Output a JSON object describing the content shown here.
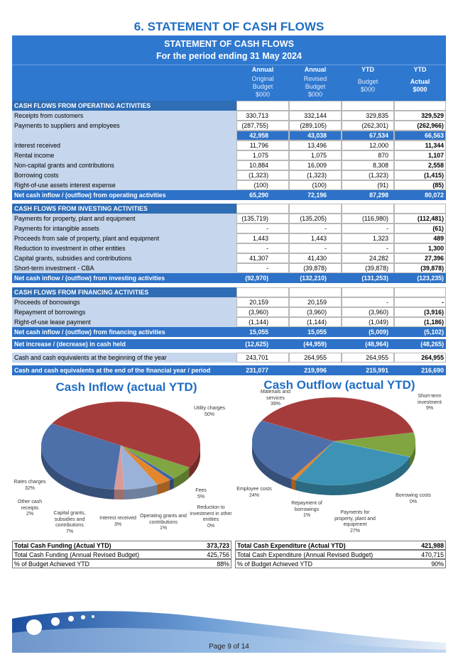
{
  "page_title": "6. STATEMENT OF CASH FLOWS",
  "table": {
    "title": "STATEMENT OF CASH FLOWS",
    "subtitle": "For the period ending 31 May 2024",
    "header_top": [
      "Annual",
      "Annual",
      "YTD",
      "YTD"
    ],
    "header_sub": [
      "Original Budget $000",
      "Revised Budget $000",
      "Budget $000",
      "Actual $000"
    ],
    "sections": [
      {
        "heading": "CASH FLOWS FROM OPERATING ACTIVITIES",
        "rows": [
          {
            "label": "Receipts from customers",
            "values": [
              "330,713",
              "332,144",
              "329,835",
              "329,529"
            ]
          },
          {
            "label": "Payments to suppliers and employees",
            "values": [
              "(287,755)",
              "(289,105)",
              "(262,301)",
              "(262,966)"
            ]
          },
          {
            "values": [
              "42,958",
              "43,038",
              "67,534",
              "66,563"
            ]
          },
          {
            "label": "Interest received",
            "values": [
              "11,796",
              "13,496",
              "12,000",
              "11,344"
            ]
          },
          {
            "label": "Rental income",
            "values": [
              "1,075",
              "1,075",
              "870",
              "1,107"
            ]
          },
          {
            "label": "Non-capital grants and contributions",
            "values": [
              "10,884",
              "16,009",
              "8,308",
              "2,558"
            ]
          },
          {
            "label": "Borrowing costs",
            "values": [
              "(1,323)",
              "(1,323)",
              "(1,323)",
              "(1,415)"
            ]
          },
          {
            "label": "Right-of-use assets interest expense",
            "values": [
              "(100)",
              "(100)",
              "(91)",
              "(85)"
            ]
          }
        ],
        "net": {
          "label": "Net cash inflow / (outflow) from operating activities",
          "values": [
            "65,290",
            "72,196",
            "87,298",
            "80,072"
          ]
        }
      },
      {
        "heading": "CASH FLOWS FROM INVESTING ACTIVITIES",
        "rows": [
          {
            "label": "Payments for property, plant and equipment",
            "values": [
              "(135,719)",
              "(135,205)",
              "(116,980)",
              "(112,481)"
            ]
          },
          {
            "label": "Payments for intangible assets",
            "values": [
              "-",
              "-",
              "-",
              "(61)"
            ]
          },
          {
            "label": "Proceeds from sale of property, plant and equipment",
            "values": [
              "1,443",
              "1,443",
              "1,323",
              "489"
            ]
          },
          {
            "label": "Reduction to investment in other entities",
            "values": [
              "-",
              "-",
              "-",
              "1,300"
            ]
          },
          {
            "label": "Capital grants, subsidies and contributions",
            "values": [
              "41,307",
              "41,430",
              "24,282",
              "27,396"
            ]
          },
          {
            "label": "Short-term investment - CBA",
            "values": [
              "-",
              "(39,878)",
              "(39,878)",
              "(39,878)"
            ]
          }
        ],
        "net": {
          "label": "Net cash inflow / (outflow) from investing activities",
          "values": [
            "(92,970)",
            "(132,210)",
            "(131,253)",
            "(123,235)"
          ]
        }
      },
      {
        "heading": "CASH FLOWS FROM FINANCING ACTIVITIES",
        "rows": [
          {
            "label": "Proceeds of borrowings",
            "values": [
              "20,159",
              "20,159",
              "-",
              "-"
            ]
          },
          {
            "label": "Repayment of borrowings",
            "values": [
              "(3,960)",
              "(3,960)",
              "(3,960)",
              "(3,916)"
            ]
          },
          {
            "label": "Right-of-use lease payment",
            "values": [
              "(1,144)",
              "(1,144)",
              "(1,049)",
              "(1,186)"
            ]
          }
        ],
        "net": {
          "label": "Net cash inflow / (outflow) from financing activities",
          "values": [
            "15,055",
            "15,055",
            "(5,009)",
            "(5,102)"
          ]
        }
      }
    ],
    "net_increase": {
      "label": "Net increase / (decrease) in cash held",
      "values": [
        "(12,625)",
        "(44,959)",
        "(48,964)",
        "(48,265)"
      ]
    },
    "opening": {
      "label": "Cash and cash equivalents at the beginning of the year",
      "values": [
        "243,701",
        "264,955",
        "264,955",
        "264,955"
      ]
    },
    "closing": {
      "label": "Cash and cash equivalents at the end of the financial year / period",
      "values": [
        "231,077",
        "219,996",
        "215,991",
        "216,690"
      ]
    }
  },
  "charts": [
    {
      "type": "pie",
      "title": "Cash Inflow (actual YTD)",
      "slices": [
        {
          "label": "Utility charges",
          "value": 50,
          "value_label": "50%",
          "color": "#a53c3c"
        },
        {
          "label": "Fees",
          "value": 5,
          "value_label": "5%",
          "color": "#80a541"
        },
        {
          "label": "Reduction to investment in other entities",
          "value": 0,
          "value_label": "0%",
          "color": "#7b5ea7"
        },
        {
          "label": "Operating grants and contributions",
          "value": 1,
          "value_label": "1%",
          "color": "#3e64a8"
        },
        {
          "label": "Interest received",
          "value": 3,
          "value_label": "3%",
          "color": "#e3862e"
        },
        {
          "label": "Capital grants, subsidies and contributions",
          "value": 7,
          "value_label": "7%",
          "color": "#9ab2d8"
        },
        {
          "label": "Other cash receipts",
          "value": 2,
          "value_label": "2%",
          "color": "#d99a98"
        },
        {
          "label": "Rates charges",
          "value": 32,
          "value_label": "32%",
          "color": "#4d6faa"
        }
      ]
    },
    {
      "type": "pie",
      "title": "Cash Outflow (actual YTD)",
      "slices": [
        {
          "label": "Materials and services",
          "value": 39,
          "value_label": "39%",
          "color": "#a53c3c"
        },
        {
          "label": "Short-term investment",
          "value": 9,
          "value_label": "9%",
          "color": "#80a541"
        },
        {
          "label": "Borrowing costs",
          "value": 0,
          "value_label": "0%",
          "color": "#7b5ea7"
        },
        {
          "label": "Payments for property, plant and equipment",
          "value": 27,
          "value_label": "27%",
          "color": "#3c93b5"
        },
        {
          "label": "Repayment of borrowings",
          "value": 1,
          "value_label": "1%",
          "color": "#e3862e"
        },
        {
          "label": "Employee costs",
          "value": 24,
          "value_label": "24%",
          "color": "#4d6faa"
        }
      ]
    }
  ],
  "summary": {
    "funding": [
      {
        "label": "Total Cash Funding (Actual YTD)",
        "value": "373,723"
      },
      {
        "label": "Total Cash Funding (Annual Revised Budget)",
        "value": "425,756"
      },
      {
        "label": "% of Budget Achieved YTD",
        "value": "88%"
      }
    ],
    "expenditure": [
      {
        "label": "Total Cash Expenditure (Actual YTD)",
        "value": "421,988"
      },
      {
        "label": "Total Cash Expenditure (Annual Revised Budget)",
        "value": "470,715"
      },
      {
        "label": "% of Budget Achieved YTD",
        "value": "90%"
      }
    ]
  },
  "footer": "Page 9 of 14"
}
